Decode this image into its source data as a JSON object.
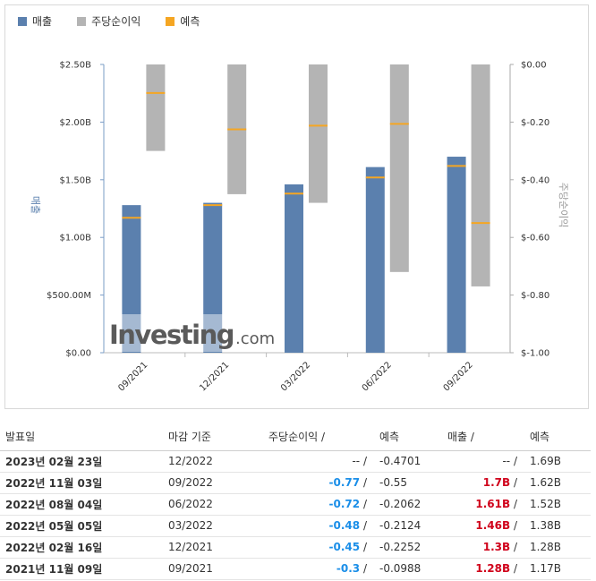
{
  "legend": {
    "revenue": "매출",
    "eps": "주당순이익",
    "forecast": "예측"
  },
  "colors": {
    "revenue": "#5b80ae",
    "eps": "#b4b4b4",
    "forecast": "#f5a623",
    "negative": "#1a8ee8",
    "positive": "#d0021b"
  },
  "watermark": {
    "brand": "Investing",
    "suffix": ".com"
  },
  "chart_data": {
    "type": "bar",
    "categories": [
      "09/2021",
      "12/2021",
      "03/2022",
      "06/2022",
      "09/2022"
    ],
    "series": [
      {
        "name": "매출",
        "axis": "left",
        "values": [
          1.28,
          1.3,
          1.46,
          1.61,
          1.7
        ],
        "forecast": [
          1.17,
          1.28,
          1.38,
          1.52,
          1.62
        ]
      },
      {
        "name": "주당순이익",
        "axis": "right",
        "values": [
          -0.3,
          -0.45,
          -0.48,
          -0.72,
          -0.77
        ],
        "forecast": [
          -0.0988,
          -0.2252,
          -0.2124,
          -0.2062,
          -0.55
        ]
      }
    ],
    "y_left": {
      "label": "매출",
      "range": [
        0,
        2.5
      ],
      "ticks": [
        {
          "v": 0,
          "label": "$0.00"
        },
        {
          "v": 0.5,
          "label": "$500.00M"
        },
        {
          "v": 1.0,
          "label": "$1.00B"
        },
        {
          "v": 1.5,
          "label": "$1.50B"
        },
        {
          "v": 2.0,
          "label": "$2.00B"
        },
        {
          "v": 2.5,
          "label": "$2.50B"
        }
      ]
    },
    "y_right": {
      "label": "주당순이익",
      "range": [
        -1.0,
        0
      ],
      "ticks": [
        {
          "v": 0,
          "label": "$0.00"
        },
        {
          "v": -0.2,
          "label": "$-0.20"
        },
        {
          "v": -0.4,
          "label": "$-0.40"
        },
        {
          "v": -0.6,
          "label": "$-0.60"
        },
        {
          "v": -0.8,
          "label": "$-0.80"
        },
        {
          "v": -1.0,
          "label": "$-1.00"
        }
      ]
    },
    "grid": false
  },
  "table": {
    "headers": {
      "date": "발표일",
      "period": "마감 기준",
      "eps": "주당순이익",
      "eps_forecast": "예측",
      "revenue": "매출",
      "revenue_forecast": "예측"
    },
    "rows": [
      {
        "date": "2023년 02월 23일",
        "period": "12/2022",
        "eps": "--",
        "eps_cls": "plain",
        "eps_forecast": "-0.4701",
        "revenue": "--",
        "rev_cls": "plain",
        "revenue_forecast": "1.69B"
      },
      {
        "date": "2022년 11월 03일",
        "period": "09/2022",
        "eps": "-0.77",
        "eps_cls": "neg",
        "eps_forecast": "-0.55",
        "revenue": "1.7B",
        "rev_cls": "pos",
        "revenue_forecast": "1.62B"
      },
      {
        "date": "2022년 08월 04일",
        "period": "06/2022",
        "eps": "-0.72",
        "eps_cls": "neg",
        "eps_forecast": "-0.2062",
        "revenue": "1.61B",
        "rev_cls": "pos",
        "revenue_forecast": "1.52B"
      },
      {
        "date": "2022년 05월 05일",
        "period": "03/2022",
        "eps": "-0.48",
        "eps_cls": "neg",
        "eps_forecast": "-0.2124",
        "revenue": "1.46B",
        "rev_cls": "pos",
        "revenue_forecast": "1.38B"
      },
      {
        "date": "2022년 02월 16일",
        "period": "12/2021",
        "eps": "-0.45",
        "eps_cls": "neg",
        "eps_forecast": "-0.2252",
        "revenue": "1.3B",
        "rev_cls": "pos",
        "revenue_forecast": "1.28B"
      },
      {
        "date": "2021년 11월 09일",
        "period": "09/2021",
        "eps": "-0.3",
        "eps_cls": "neg",
        "eps_forecast": "-0.0988",
        "revenue": "1.28B",
        "rev_cls": "pos",
        "revenue_forecast": "1.17B"
      }
    ]
  }
}
